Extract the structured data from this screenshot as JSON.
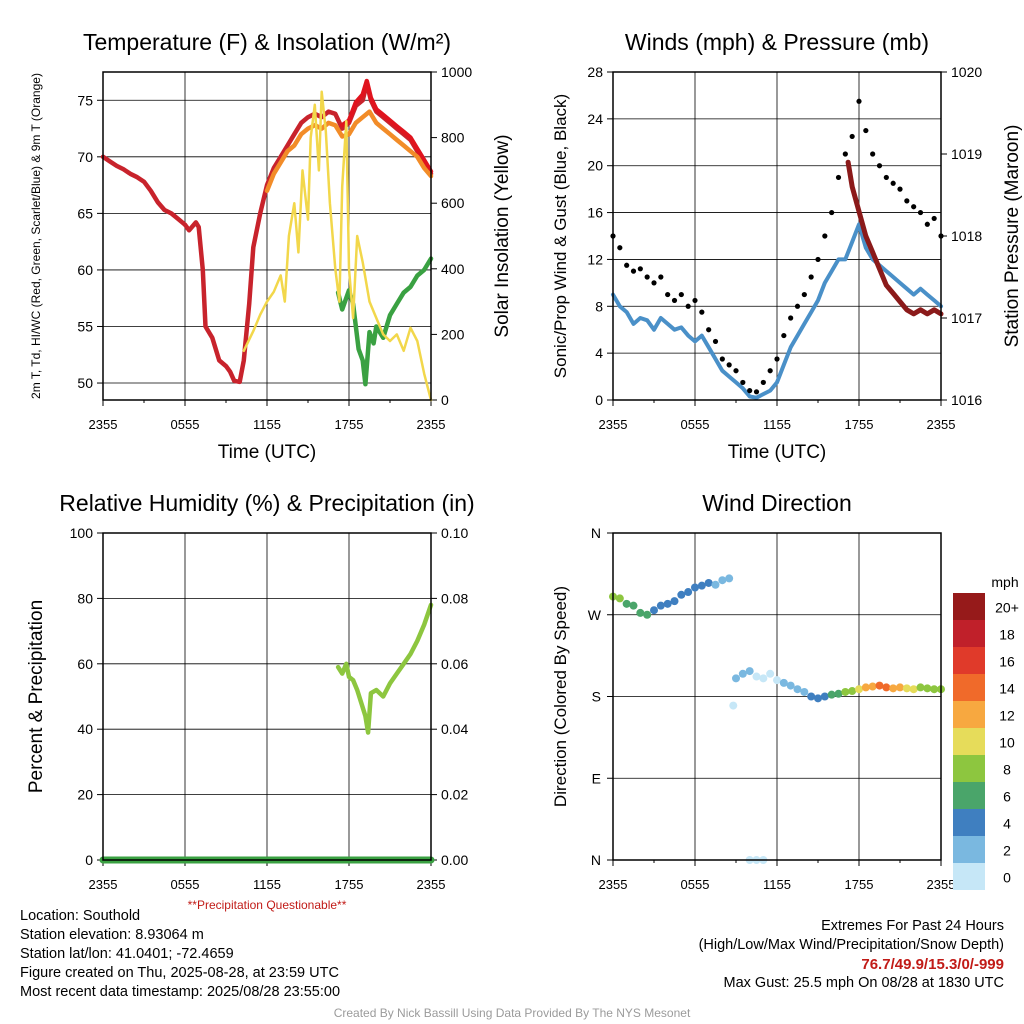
{
  "chart_data": [
    {
      "type": "line",
      "title": "Temperature (F) & Insolation (W/m²)",
      "xlabel": "Time (UTC)",
      "ylabel": "2m T, Td, HI/WC (Red, Green, Scarlet/Blue) & 9m T (Orange)",
      "y2label": "Solar Insolation (Yellow)",
      "x_ticks": [
        "2355",
        "0555",
        "1155",
        "1755",
        "2355"
      ],
      "y_ticks": [
        50,
        55,
        60,
        65,
        70,
        75
      ],
      "y2_ticks": [
        0,
        200,
        400,
        600,
        800,
        1000
      ],
      "ylim": [
        48.5,
        77.5
      ],
      "y2lim": [
        0,
        1000
      ],
      "xlim": [
        0,
        24
      ],
      "grid": true,
      "series": [
        {
          "name": "2m T",
          "color": "#c8232c",
          "axis": "y",
          "x": [
            0,
            0.5,
            1,
            1.5,
            2,
            2.5,
            3,
            3.5,
            4,
            4.5,
            5,
            5.5,
            6,
            6.3,
            6.8,
            7,
            7.3,
            7.5,
            8,
            8.5,
            9,
            9.3,
            9.6,
            10,
            10.3,
            10.7,
            11,
            11.5,
            12,
            12.5,
            13,
            13.5,
            14,
            14.5,
            15,
            15.5,
            16,
            16.5,
            17,
            17.5,
            18,
            18.5,
            19,
            19.3,
            19.6,
            20,
            20.5,
            21,
            21.5,
            22,
            22.5,
            23,
            23.5,
            24
          ],
          "values": [
            70,
            69.6,
            69.2,
            68.9,
            68.5,
            68.2,
            67.8,
            67,
            66,
            65.3,
            65,
            64.5,
            64,
            63.5,
            64.2,
            63.8,
            60,
            55,
            54,
            52,
            51.5,
            51,
            50.2,
            50.1,
            52,
            57,
            62,
            65,
            67.5,
            69,
            70,
            71,
            72,
            73,
            73.5,
            73.8,
            73.5,
            74,
            73.8,
            72.5,
            73,
            74.5,
            75,
            76.5,
            75,
            74,
            73.5,
            73,
            72.5,
            72,
            71.5,
            70.5,
            69.5,
            68.5
          ]
        },
        {
          "name": "HI/WC",
          "color": "#e0141e",
          "axis": "y",
          "x": [
            17.5,
            18,
            18.5,
            19,
            19.3,
            19.6,
            20,
            20.5,
            21,
            21.5,
            22,
            22.5,
            23,
            23.5,
            24
          ],
          "values": [
            72.8,
            73.2,
            74.8,
            75.5,
            76.7,
            75.2,
            74.2,
            73.7,
            73.2,
            72.7,
            72.2,
            71.7,
            70.7,
            69.7,
            68.7
          ]
        },
        {
          "name": "9m T",
          "color": "#f28c28",
          "axis": "y",
          "x": [
            12,
            12.5,
            13,
            13.5,
            14,
            14.5,
            15,
            15.5,
            16,
            16.5,
            17,
            17.5,
            18,
            18.5,
            19,
            19.5,
            20,
            20.5,
            21,
            21.5,
            22,
            22.5,
            23,
            23.5,
            24
          ],
          "values": [
            67,
            68.5,
            69.5,
            70.5,
            71,
            72,
            72.5,
            72.8,
            72.5,
            73,
            72.8,
            71.8,
            72,
            73,
            73.5,
            74,
            73,
            72.5,
            72,
            71.5,
            71,
            70.5,
            70,
            69,
            68.3
          ]
        },
        {
          "name": "Td",
          "color": "#3aa142",
          "axis": "y",
          "x": [
            17.2,
            17.5,
            18,
            18.3,
            18.7,
            19,
            19.2,
            19.5,
            19.8,
            20,
            20.5,
            21,
            21.5,
            22,
            22.5,
            23,
            23.5,
            24
          ],
          "values": [
            58,
            56.5,
            58.2,
            57,
            53,
            52,
            49.9,
            54.5,
            53.5,
            55,
            54,
            56,
            57,
            58,
            58.5,
            59.5,
            60,
            61
          ]
        },
        {
          "name": "Solar Insolation",
          "color": "#f2d74b",
          "axis": "y2",
          "x": [
            10.3,
            11,
            11.5,
            12,
            12.5,
            13,
            13.3,
            13.6,
            14,
            14.3,
            14.6,
            15,
            15.2,
            15.5,
            15.8,
            16,
            16.3,
            16.6,
            17,
            17.3,
            17.5,
            17.8,
            18,
            18.3,
            18.6,
            19,
            19.5,
            20,
            20.5,
            21,
            21.5,
            22,
            22.5,
            23,
            23.5,
            24
          ],
          "values": [
            150,
            210,
            260,
            300,
            330,
            380,
            300,
            500,
            600,
            450,
            700,
            550,
            800,
            900,
            700,
            940,
            820,
            600,
            400,
            300,
            650,
            850,
            400,
            250,
            500,
            420,
            300,
            250,
            200,
            180,
            200,
            150,
            220,
            180,
            80,
            0
          ]
        }
      ]
    },
    {
      "type": "scatter",
      "title": "Winds (mph) & Pressure (mb)",
      "xlabel": "Time (UTC)",
      "ylabel": "Sonic/Prop Wind & Gust (Blue, Black)",
      "y2label": "Station Pressure (Maroon)",
      "x_ticks": [
        "2355",
        "0555",
        "1155",
        "1755",
        "2355"
      ],
      "y_ticks": [
        0,
        4,
        8,
        12,
        16,
        20,
        24,
        28
      ],
      "y2_ticks": [
        1016,
        1017,
        1018,
        1019,
        1020
      ],
      "ylim": [
        0,
        28
      ],
      "y2lim": [
        1016,
        1020
      ],
      "xlim": [
        0,
        24
      ],
      "grid": true,
      "series": [
        {
          "name": "Sonic/Prop Wind",
          "color": "#4a90c8",
          "axis": "y",
          "x": [
            0,
            0.5,
            1,
            1.5,
            2,
            2.5,
            3,
            3.5,
            4,
            4.5,
            5,
            5.5,
            6,
            6.5,
            7,
            7.5,
            8,
            8.5,
            9,
            9.5,
            10,
            10.5,
            11,
            11.5,
            12,
            12.5,
            13,
            13.5,
            14,
            14.5,
            15,
            15.5,
            16,
            16.5,
            17,
            17.5,
            18,
            18.5,
            19,
            19.5,
            20,
            20.5,
            21,
            21.5,
            22,
            22.5,
            23,
            23.5,
            24
          ],
          "values": [
            9,
            8,
            7.5,
            6.5,
            7,
            6.8,
            6,
            7,
            6.5,
            6,
            6.2,
            5.5,
            5,
            5.5,
            4.5,
            3.5,
            2.5,
            2,
            1.5,
            1,
            0.3,
            0.2,
            0.5,
            0.8,
            1.5,
            3,
            4.5,
            5.5,
            6.5,
            7.5,
            8.5,
            10,
            11,
            12,
            12,
            13.5,
            15,
            13,
            12,
            11.5,
            11,
            10.5,
            10,
            9.5,
            9,
            9.5,
            9,
            8.5,
            8
          ]
        },
        {
          "name": "Gust",
          "color": "#000000",
          "axis": "y",
          "x": [
            0,
            0.5,
            1,
            1.5,
            2,
            2.5,
            3,
            3.5,
            4,
            4.5,
            5,
            5.5,
            6,
            6.5,
            7,
            7.5,
            8,
            8.5,
            9,
            9.5,
            10,
            10.5,
            11,
            11.5,
            12,
            12.5,
            13,
            13.5,
            14,
            14.5,
            15,
            15.5,
            16,
            16.5,
            17,
            17.5,
            18,
            18.5,
            19,
            19.5,
            20,
            20.5,
            21,
            21.5,
            22,
            22.5,
            23,
            23.5,
            24
          ],
          "values": [
            14,
            13,
            11.5,
            11,
            11.2,
            10.5,
            10,
            10.5,
            9,
            8.5,
            9,
            8,
            8.5,
            7.5,
            6,
            5,
            3.5,
            3,
            2.5,
            1.5,
            0.8,
            0.7,
            1.5,
            2.5,
            3.5,
            5.5,
            7,
            8,
            9,
            10.5,
            12,
            14,
            16,
            19,
            21,
            22.5,
            25.5,
            23,
            21,
            20,
            19,
            18.5,
            18,
            17,
            16.5,
            16,
            15,
            15.5,
            14
          ]
        },
        {
          "name": "Station Pressure",
          "color": "#8b1a1a",
          "axis": "y2",
          "x": [
            17.2,
            17.5,
            18,
            18.5,
            19,
            19.5,
            20,
            20.5,
            21,
            21.5,
            22,
            22.5,
            23,
            23.5,
            24
          ],
          "values": [
            1018.9,
            1018.6,
            1018.3,
            1018.0,
            1017.8,
            1017.6,
            1017.4,
            1017.3,
            1017.2,
            1017.1,
            1017.05,
            1017.1,
            1017.05,
            1017.1,
            1017.05
          ]
        }
      ]
    },
    {
      "type": "line",
      "title": "Relative Humidity (%) & Precipitation (in)",
      "ylabel": "Percent & Precipitation",
      "x_ticks": [
        "2355",
        "0555",
        "1155",
        "1755",
        "2355"
      ],
      "y_ticks": [
        0,
        20,
        40,
        60,
        80,
        100
      ],
      "y2_ticks": [
        "0.00",
        "0.02",
        "0.04",
        "0.06",
        "0.08",
        "0.10"
      ],
      "ylim": [
        0,
        100
      ],
      "y2lim": [
        0,
        0.1
      ],
      "xlim": [
        0,
        24
      ],
      "grid": true,
      "annotation": "**Precipitation Questionable**",
      "series": [
        {
          "name": "Relative Humidity",
          "color": "#8dc63f",
          "axis": "y",
          "x": [
            17.2,
            17.5,
            17.8,
            18,
            18.3,
            18.6,
            18.9,
            19.2,
            19.4,
            19.6,
            20,
            20.5,
            21,
            21.5,
            22,
            22.5,
            23,
            23.5,
            24
          ],
          "values": [
            59,
            57,
            60,
            56,
            55,
            52,
            48,
            44,
            39,
            51,
            52,
            50,
            54,
            57,
            60,
            63,
            67,
            72,
            78
          ]
        },
        {
          "name": "Precipitation",
          "color": "#3aa142",
          "axis": "y2",
          "x": [
            0,
            24
          ],
          "values": [
            0,
            0
          ]
        }
      ]
    },
    {
      "type": "scatter",
      "title": "Wind Direction",
      "ylabel": "Direction (Colored By Speed)",
      "x_ticks": [
        "2355",
        "0555",
        "1155",
        "1755",
        "2355"
      ],
      "y_ticks": [
        "N",
        "E",
        "S",
        "W",
        "N"
      ],
      "ylim": [
        0,
        360
      ],
      "xlim": [
        0,
        24
      ],
      "grid": true,
      "colorbar": {
        "title": "mph",
        "labels": [
          "0",
          "2",
          "4",
          "6",
          "8",
          "10",
          "12",
          "14",
          "16",
          "18",
          "20+"
        ],
        "colors": [
          "#c6e7f7",
          "#7ab8e0",
          "#3f7fc0",
          "#4aa56a",
          "#8dc63f",
          "#e6dc5a",
          "#f7a840",
          "#f06a2a",
          "#e03a2a",
          "#c0202a",
          "#961a1a"
        ]
      },
      "x": [
        0,
        0.5,
        1,
        1.5,
        2,
        2.5,
        3,
        3.5,
        4,
        4.5,
        5,
        5.5,
        6,
        6.5,
        7,
        7.5,
        8,
        8.5,
        8.8,
        9,
        9.5,
        10,
        10.5,
        11,
        11.5,
        12,
        12.5,
        13,
        13.5,
        14,
        14.5,
        15,
        15.5,
        16,
        16.5,
        17,
        17.5,
        18,
        18.5,
        19,
        19.5,
        20,
        20.5,
        21,
        21.5,
        22,
        22.5,
        23,
        23.5,
        24,
        10,
        10.5,
        11
      ],
      "values": [
        290,
        288,
        282,
        280,
        272,
        270,
        275,
        280,
        282,
        285,
        292,
        295,
        300,
        302,
        305,
        303,
        308,
        310,
        170,
        200,
        205,
        208,
        202,
        200,
        205,
        198,
        195,
        192,
        188,
        185,
        180,
        178,
        180,
        182,
        183,
        185,
        186,
        188,
        190,
        191,
        192,
        190,
        189,
        190,
        189,
        188,
        190,
        189,
        188,
        188,
        0,
        0,
        0
      ],
      "speeds": [
        8,
        8,
        7,
        6,
        6,
        6,
        5,
        5,
        5,
        5,
        5,
        5,
        4,
        4,
        4,
        3,
        3,
        3,
        1,
        2,
        2,
        2,
        1,
        1,
        1,
        1,
        2,
        2,
        3,
        3,
        4,
        4,
        5,
        6,
        7,
        9,
        9,
        10,
        12,
        13,
        14,
        14,
        13,
        12,
        11,
        10,
        9,
        9,
        9,
        8,
        1,
        1,
        1
      ]
    }
  ],
  "info_left": {
    "location": "Location: Southold",
    "elevation": "Station elevation: 8.93064 m",
    "latlon": "Station lat/lon: 41.0401; -72.4659",
    "created": "Figure created on Thu, 2025-08-28, at 23:59 UTC",
    "recent": "Most recent data timestamp: 2025/08/28 23:55:00"
  },
  "info_right": {
    "title": "Extremes For Past 24 Hours",
    "subtitle": "(High/Low/Max Wind/Precipitation/Snow Depth)",
    "values": "76.7/49.9/15.3/0/-999",
    "gust": "Max Gust: 25.5 mph On 08/28 at 1830 UTC"
  },
  "credit": "Created By Nick Bassill Using Data Provided By The NYS Mesonet"
}
